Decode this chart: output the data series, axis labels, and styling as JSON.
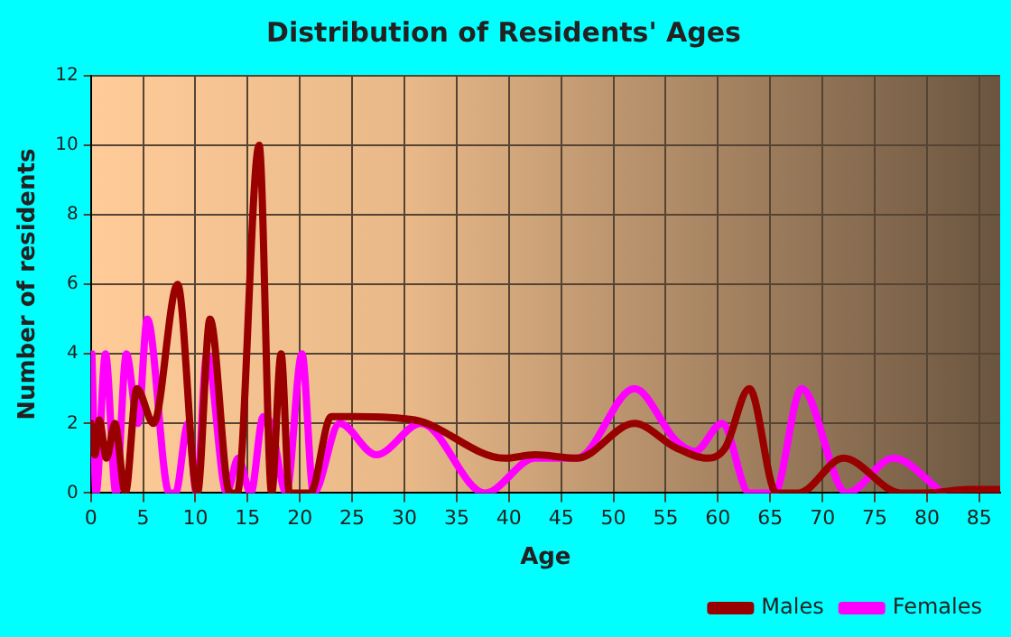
{
  "chart_data": {
    "type": "line",
    "title": "Distribution of Residents' Ages",
    "xlabel": "Age",
    "ylabel": "Number of residents",
    "xlim": [
      0,
      87
    ],
    "xticks": [
      0,
      5,
      10,
      15,
      20,
      25,
      30,
      35,
      40,
      45,
      50,
      55,
      60,
      65,
      70,
      75,
      80,
      85
    ],
    "ylim": [
      0,
      12
    ],
    "yticks": [
      0,
      2,
      4,
      6,
      8,
      10,
      12
    ],
    "grid": true,
    "legend": "bottom right",
    "marker": "none",
    "line_style": "solid",
    "series": [
      {
        "name": "Males",
        "color": "#990000",
        "x": [
          0,
          0.4,
          0.8,
          1.5,
          2.3,
          3.3,
          4.4,
          6,
          8.3,
          10.2,
          11.4,
          13.3,
          14,
          16.1,
          17.3,
          18.2,
          19,
          21,
          23,
          25.3,
          31,
          39.6,
          42.5,
          46.5,
          52,
          56,
          59,
          60.7,
          63,
          65.6,
          67.7,
          72,
          77.5,
          80,
          84,
          87
        ],
        "values": [
          2,
          1.1,
          2.1,
          1,
          2,
          0,
          3,
          2,
          6,
          0,
          5,
          0,
          0,
          10,
          0,
          4,
          0,
          0,
          2.2,
          2.2,
          2.1,
          1,
          1.1,
          1,
          2,
          1.3,
          1,
          1.3,
          3,
          0,
          0,
          1,
          0,
          0,
          0.1,
          0.1
        ]
      },
      {
        "name": "Females",
        "color": "#ff00ff",
        "x": [
          0.1,
          0.5,
          1.4,
          2.4,
          3.4,
          4.5,
          5.4,
          7.5,
          8.1,
          9.3,
          10.1,
          11.1,
          13,
          14.1,
          15.3,
          16.5,
          17.2,
          18.7,
          20.2,
          21.3,
          23.8,
          27.3,
          31.6,
          37.7,
          42.5,
          46.5,
          52,
          56,
          57.8,
          60.4,
          63,
          65.4,
          68,
          72.3,
          76.8,
          81.5
        ],
        "values": [
          4,
          0,
          4,
          0,
          4,
          2,
          5,
          0,
          0,
          2,
          0,
          4,
          0,
          1,
          0,
          2.2,
          2,
          0,
          4,
          0,
          2,
          1.1,
          2,
          0,
          1,
          1,
          3,
          1.5,
          1.2,
          2,
          0,
          0,
          3,
          0,
          1,
          0
        ]
      }
    ]
  }
}
